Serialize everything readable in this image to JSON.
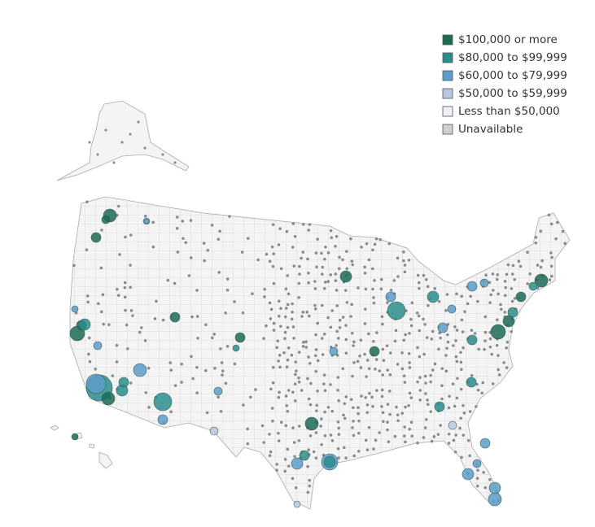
{
  "legend": {
    "items": [
      {
        "label": "$100,000 or more",
        "color": "#1b6b55"
      },
      {
        "label": "$80,000 to $99,999",
        "color": "#2a8d8c"
      },
      {
        "label": "$60,000 to $79,999",
        "color": "#5c9ec9"
      },
      {
        "label": "$50,000 to $59,999",
        "color": "#b7c7e0"
      },
      {
        "label": "Less than $50,000",
        "color": "#f3eff9"
      },
      {
        "label": "Unavailable",
        "color": "#cfcfcf"
      }
    ]
  }
}
